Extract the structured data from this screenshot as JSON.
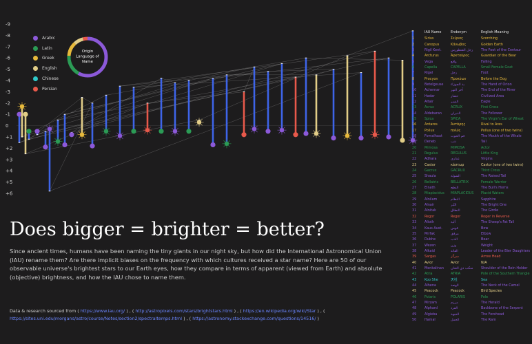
{
  "chart_data": {
    "type": "scatter",
    "title": "Does bigger = brighter = better?",
    "y_ticks": [
      "-9",
      "-8",
      "-7",
      "-6",
      "-5",
      "-4",
      "-3",
      "-2",
      "-1",
      "0",
      "+1",
      "+2",
      "+3",
      "+4",
      "+5",
      "+6"
    ],
    "ylim": [
      -9,
      6
    ],
    "y_inverted": true,
    "legend": {
      "placement": "top-left",
      "entries": [
        {
          "name": "Arabic",
          "color": "#8c59d9"
        },
        {
          "name": "Latin",
          "color": "#2b9b55"
        },
        {
          "name": "Greek",
          "color": "#e7b93b"
        },
        {
          "name": "English",
          "color": "#e2cd87"
        },
        {
          "name": "Chinese",
          "color": "#2fc9c9"
        },
        {
          "name": "Persian",
          "color": "#e8594b"
        }
      ]
    },
    "donut": {
      "label": "Origin Language of Name",
      "segments": [
        {
          "language": "Arabic",
          "share": 58,
          "color": "#8c59d9"
        },
        {
          "language": "Latin",
          "share": 18,
          "color": "#2b9b55"
        },
        {
          "language": "Greek",
          "share": 12,
          "color": "#e7b93b"
        },
        {
          "language": "English",
          "share": 8,
          "color": "#e2cd87"
        },
        {
          "language": "Persian",
          "share": 4,
          "color": "#e8594b"
        }
      ]
    },
    "stars": [
      {
        "x": 4,
        "app": -1.0,
        "abs": 1.5,
        "lang": "Arabic",
        "glyph": "circle"
      },
      {
        "x": 8,
        "app": -1.7,
        "abs": 1.0,
        "lang": "Greek",
        "glyph": "burst"
      },
      {
        "x": 13,
        "app": -1.0,
        "abs": 2.5,
        "lang": "English",
        "glyph": "circle"
      },
      {
        "x": 18,
        "app": 0.5,
        "abs": 1.2,
        "lang": "Latin",
        "glyph": "circle"
      },
      {
        "x": 30,
        "app": 0.5,
        "abs": 0.8,
        "lang": "Arabic",
        "glyph": "circle"
      },
      {
        "x": 42,
        "app": 1.9,
        "abs": 0.5,
        "lang": "Arabic",
        "glyph": "circle"
      },
      {
        "x": 48,
        "app": 0.3,
        "abs": 5.8,
        "lang": "Arabic",
        "glyph": "burst"
      },
      {
        "x": 60,
        "app": 1.4,
        "abs": -0.5,
        "lang": "Latin",
        "glyph": "burst"
      },
      {
        "x": 70,
        "app": 1.7,
        "abs": -1.0,
        "lang": "Arabic",
        "glyph": "circle"
      },
      {
        "x": 80,
        "app": 0.8,
        "abs": 0.6,
        "lang": "Arabic",
        "glyph": "circle"
      },
      {
        "x": 95,
        "app": 0.8,
        "abs": -2.5,
        "lang": "Greek",
        "glyph": "burst"
      },
      {
        "x": 110,
        "app": 1.8,
        "abs": -2.0,
        "lang": "Arabic",
        "glyph": "circle"
      },
      {
        "x": 130,
        "app": 0.5,
        "abs": -2.7,
        "lang": "Latin",
        "glyph": "burst"
      },
      {
        "x": 150,
        "app": 0.9,
        "abs": -3.5,
        "lang": "Arabic",
        "glyph": "burst"
      },
      {
        "x": 170,
        "app": 0.5,
        "abs": -3.4,
        "lang": "Latin",
        "glyph": "circle"
      },
      {
        "x": 190,
        "app": 0.4,
        "abs": -2.0,
        "lang": "Persian",
        "glyph": "burst"
      },
      {
        "x": 210,
        "app": 0.5,
        "abs": -4.2,
        "lang": "Latin",
        "glyph": "circle"
      },
      {
        "x": 230,
        "app": 0.5,
        "abs": -3.8,
        "lang": "Arabic",
        "glyph": "burst"
      },
      {
        "x": 250,
        "app": 0.5,
        "abs": -4.0,
        "lang": "Latin",
        "glyph": "circle"
      },
      {
        "x": 265,
        "app": -0.3,
        "abs": -0.5,
        "lang": "English",
        "glyph": "burst"
      },
      {
        "x": 285,
        "app": 1.7,
        "abs": -4.2,
        "lang": "Arabic",
        "glyph": "circle"
      },
      {
        "x": 305,
        "app": 1.6,
        "abs": -4.5,
        "lang": "Latin",
        "glyph": "burst"
      },
      {
        "x": 330,
        "app": 0.8,
        "abs": -3.0,
        "lang": "Persian",
        "glyph": "circle"
      },
      {
        "x": 345,
        "app": 0.3,
        "abs": -5.2,
        "lang": "Arabic",
        "glyph": "burst"
      },
      {
        "x": 365,
        "app": 0.5,
        "abs": -4.8,
        "lang": "Arabic",
        "glyph": "circle"
      },
      {
        "x": 385,
        "app": 0.4,
        "abs": -5.5,
        "lang": "Arabic",
        "glyph": "burst"
      },
      {
        "x": 405,
        "app": 0.8,
        "abs": -4.3,
        "lang": "Persian",
        "glyph": "circle"
      },
      {
        "x": 420,
        "app": 0.7,
        "abs": -6.0,
        "lang": "Arabic",
        "glyph": "circle"
      },
      {
        "x": 435,
        "app": 0.7,
        "abs": -4.5,
        "lang": "English",
        "glyph": "burst"
      },
      {
        "x": 460,
        "app": 1.1,
        "abs": -5.0,
        "lang": "Arabic",
        "glyph": "circle"
      },
      {
        "x": 480,
        "app": 0.9,
        "abs": -6.2,
        "lang": "Greek",
        "glyph": "burst"
      },
      {
        "x": 500,
        "app": 1.1,
        "abs": -4.7,
        "lang": "Arabic",
        "glyph": "circle"
      },
      {
        "x": 520,
        "app": 0.8,
        "abs": -6.6,
        "lang": "Persian",
        "glyph": "burst"
      },
      {
        "x": 540,
        "app": 1.0,
        "abs": -6.0,
        "lang": "Arabic",
        "glyph": "circle"
      },
      {
        "x": 560,
        "app": 1.3,
        "abs": -5.8,
        "lang": "English",
        "glyph": "circle"
      },
      {
        "x": 575,
        "app": 1.3,
        "abs": -8.4,
        "lang": "Arabic",
        "glyph": "burst"
      }
    ]
  },
  "table": {
    "headers": [
      "IAU Name",
      "Endonym",
      "English Meaning"
    ],
    "rows": [
      {
        "n": "1",
        "iau": "Sirius",
        "end": "Σείριος",
        "meaning": "Scorching",
        "lang": "Greek"
      },
      {
        "n": "2",
        "iau": "Canopus",
        "end": "Κάνωβος",
        "meaning": "Golden Earth",
        "lang": "Greek"
      },
      {
        "n": "3",
        "iau": "Rigil Kent.",
        "end": "رجل القنطورس",
        "meaning": "The Foot of the Centaur",
        "lang": "Arabic"
      },
      {
        "n": "4",
        "iau": "Arcturus",
        "end": "Ἀρκτοῦρος",
        "meaning": "Guardian of the Bear",
        "lang": "Greek"
      },
      {
        "n": "5",
        "iau": "Vega",
        "end": "واقع",
        "meaning": "Falling",
        "lang": "Arabic"
      },
      {
        "n": "6",
        "iau": "Capella",
        "end": "CAPELLA",
        "meaning": "Small Female Goat",
        "lang": "Latin"
      },
      {
        "n": "7",
        "iau": "Rigel",
        "end": "رجل",
        "meaning": "Foot",
        "lang": "Arabic"
      },
      {
        "n": "8",
        "iau": "Procyon",
        "end": "Προκύων",
        "meaning": "Before the Dog",
        "lang": "Greek"
      },
      {
        "n": "9",
        "iau": "Betelgeuse",
        "end": "يد الجوزاء",
        "meaning": "The Hand of Orion",
        "lang": "Arabic"
      },
      {
        "n": "10",
        "iau": "Achernar",
        "end": "آخر النهر",
        "meaning": "The End of the River",
        "lang": "Arabic"
      },
      {
        "n": "11",
        "iau": "Hadar",
        "end": "حضار",
        "meaning": "Civilized Area",
        "lang": "Arabic"
      },
      {
        "n": "12",
        "iau": "Altair",
        "end": "النسر",
        "meaning": "Eagle",
        "lang": "Arabic"
      },
      {
        "n": "13",
        "iau": "Acrux",
        "end": "ACRUX",
        "meaning": "First Cross",
        "lang": "Latin"
      },
      {
        "n": "14",
        "iau": "Aldebaran",
        "end": "الدبران",
        "meaning": "The Follower",
        "lang": "Arabic"
      },
      {
        "n": "15",
        "iau": "Spica",
        "end": "SPICA",
        "meaning": "The Virgin's Ear of Wheat",
        "lang": "Latin"
      },
      {
        "n": "16",
        "iau": "Antares",
        "end": "Ἀντάρης",
        "meaning": "Rival to Ares",
        "lang": "Greek"
      },
      {
        "n": "17",
        "iau": "Pollux",
        "end": "πολύς",
        "meaning": "Pollux (one of two twins)",
        "lang": "Greek"
      },
      {
        "n": "18",
        "iau": "Fomalhaut",
        "end": "فم الحوت",
        "meaning": "The Mouth of the Whale",
        "lang": "Arabic"
      },
      {
        "n": "19",
        "iau": "Deneb",
        "end": "ذنب",
        "meaning": "Tail",
        "lang": "Arabic"
      },
      {
        "n": "20",
        "iau": "Mimosa",
        "end": "MIMOSA",
        "meaning": "Actor",
        "lang": "Latin"
      },
      {
        "n": "21",
        "iau": "Regulus",
        "end": "REGULUS",
        "meaning": "Little King",
        "lang": "Latin"
      },
      {
        "n": "22",
        "iau": "Adhara",
        "end": "عذارى",
        "meaning": "Virgins",
        "lang": "Arabic"
      },
      {
        "n": "23",
        "iau": "Castor",
        "end": "κάστωρ",
        "meaning": "Castor (one of two twins)",
        "lang": "English"
      },
      {
        "n": "24",
        "iau": "Gacrux",
        "end": "GACRUX",
        "meaning": "Third Cross",
        "lang": "Latin"
      },
      {
        "n": "25",
        "iau": "Shaula",
        "end": "الشولة",
        "meaning": "The Raised Tail",
        "lang": "Arabic"
      },
      {
        "n": "26",
        "iau": "Bellatrix",
        "end": "BELLATRIX",
        "meaning": "Female Warrior",
        "lang": "Latin"
      },
      {
        "n": "27",
        "iau": "Elnath",
        "end": "النطح",
        "meaning": "The Bull's Horns",
        "lang": "Arabic"
      },
      {
        "n": "28",
        "iau": "Miaplacidus",
        "end": "MIAPLACIDUS",
        "meaning": "Placid Waters",
        "lang": "Latin"
      },
      {
        "n": "29",
        "iau": "Alnilam",
        "end": "النظام",
        "meaning": "Sapphire",
        "lang": "Arabic"
      },
      {
        "n": "30",
        "iau": "Alnair",
        "end": "النّير",
        "meaning": "The Bright One",
        "lang": "Arabic"
      },
      {
        "n": "31",
        "iau": "Alnitak",
        "end": "النطاق",
        "meaning": "The Girdle",
        "lang": "Arabic"
      },
      {
        "n": "32",
        "iau": "Regor",
        "end": "Regor",
        "meaning": "Roger in Reverse",
        "lang": "Persian"
      },
      {
        "n": "33",
        "iau": "Alioth",
        "end": "ألية",
        "meaning": "The Sheep's Fat Tail",
        "lang": "Arabic"
      },
      {
        "n": "34",
        "iau": "Kaus Aust.",
        "end": "قوس",
        "meaning": "Bow",
        "lang": "Arabic"
      },
      {
        "n": "35",
        "iau": "Mirfak",
        "end": "مرفق",
        "meaning": "Elbow",
        "lang": "Arabic"
      },
      {
        "n": "36",
        "iau": "Dubhe",
        "end": "الدب",
        "meaning": "Bear",
        "lang": "Arabic"
      },
      {
        "n": "37",
        "iau": "Wezen",
        "end": "وزن",
        "meaning": "Weight",
        "lang": "Arabic"
      },
      {
        "n": "38",
        "iau": "Alkaid",
        "end": "القائد",
        "meaning": "Leader of the Bier Daughters",
        "lang": "Arabic"
      },
      {
        "n": "39",
        "iau": "Sargas",
        "end": "سرگز",
        "meaning": "Arrow Head",
        "lang": "Persian"
      },
      {
        "n": "40",
        "iau": "Avior",
        "end": "Avior",
        "meaning": "N/A",
        "lang": "English"
      },
      {
        "n": "41",
        "iau": "Menkalinan",
        "end": "منكب ذي العنان",
        "meaning": "Shoulder of the Rein Holder",
        "lang": "Arabic"
      },
      {
        "n": "42",
        "iau": "Atria",
        "end": "ATRIA",
        "meaning": "Pole of the Southern Triangle",
        "lang": "Latin"
      },
      {
        "n": "43",
        "iau": "Koo She",
        "end": "天社",
        "meaning": "Sea",
        "lang": "Chinese"
      },
      {
        "n": "44",
        "iau": "Alhena",
        "end": "الهنعة",
        "meaning": "The Neck of the Camel",
        "lang": "Arabic"
      },
      {
        "n": "45",
        "iau": "Peacock",
        "end": "Peacock",
        "meaning": "Bird Species",
        "lang": "English"
      },
      {
        "n": "46",
        "iau": "Polaris",
        "end": "POLARIS",
        "meaning": "Pole",
        "lang": "Latin"
      },
      {
        "n": "47",
        "iau": "Mirzam",
        "end": "مرزم",
        "meaning": "The Herald",
        "lang": "Arabic"
      },
      {
        "n": "48",
        "iau": "Alphard",
        "end": "الفرد",
        "meaning": "Backbone of the Serpent",
        "lang": "Arabic"
      },
      {
        "n": "49",
        "iau": "Algieba",
        "end": "الجبهة",
        "meaning": "The Forehead",
        "lang": "Arabic"
      },
      {
        "n": "50",
        "iau": "Hamal",
        "end": "الحمل",
        "meaning": "The Ram",
        "lang": "Arabic"
      }
    ]
  },
  "text": {
    "title": "Does bigger = brighter = better?",
    "intro": "Since ancient times, humans have been naming the tiny giants in our night sky, but how did the International Astronomical Union (IAU) rename them? Are there implicit biases on the frequency with which cultures received a star name? Here are 50 of our observable universe's brightest stars to our Earth eyes, how they compare in terms of apparent (viewed from Earth) and absolute (objective) brightness, and how the IAU chose to name them.",
    "sources_label": "Data & research sourced from",
    "sources": [
      "https://www.iau.org/",
      "http://astropixels.com/stars/brightstars.html",
      "https://en.wikipedia.org/wiki/Star",
      "https://sites.uni.edu/morgans/astro/course/Notes/section2/spectraltemps.html",
      "https://astronomy.stackexchange.com/questions/14516/"
    ]
  }
}
